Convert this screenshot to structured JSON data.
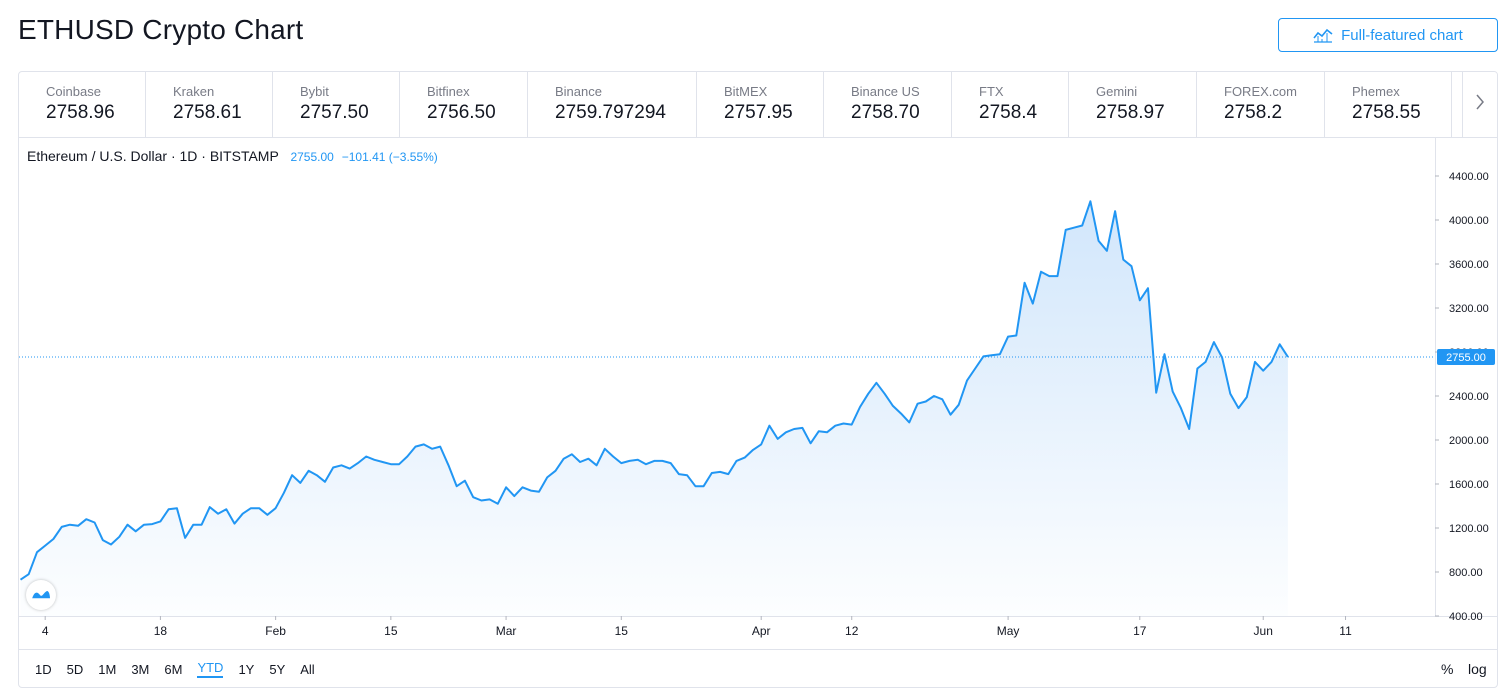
{
  "page": {
    "title": "ETHUSD Crypto Chart",
    "full_featured_label": "Full-featured chart"
  },
  "exchanges": [
    {
      "name": "Coinbase",
      "price": "2758.96"
    },
    {
      "name": "Kraken",
      "price": "2758.61"
    },
    {
      "name": "Bybit",
      "price": "2757.50"
    },
    {
      "name": "Bitfinex",
      "price": "2756.50"
    },
    {
      "name": "Binance",
      "price": "2759.797294"
    },
    {
      "name": "BitMEX",
      "price": "2757.95"
    },
    {
      "name": "Binance US",
      "price": "2758.70"
    },
    {
      "name": "FTX",
      "price": "2758.4"
    },
    {
      "name": "Gemini",
      "price": "2758.97"
    },
    {
      "name": "FOREX.com",
      "price": "2758.2"
    },
    {
      "name": "Phemex",
      "price": "2758.55"
    }
  ],
  "legend": {
    "symbol": "Ethereum / U.S. Dollar · 1D · BITSTAMP",
    "last": "2755.00",
    "change": "−101.41 (−3.55%)"
  },
  "ranges": [
    "1D",
    "5D",
    "1M",
    "3M",
    "6M",
    "YTD",
    "1Y",
    "5Y",
    "All"
  ],
  "selected_range": "YTD",
  "options": {
    "percent": "%",
    "log": "log"
  },
  "icons": {
    "chart": "chart-line-icon",
    "next": "chevron-right-icon",
    "logo": "tradingview-logo-icon"
  },
  "colors": {
    "accent": "#2196f3",
    "line": "#2196f3",
    "area_top": "#cfe5fb",
    "text": "#131722",
    "muted": "#787b86",
    "grid_border": "#e0e3eb"
  },
  "chart_data": {
    "type": "area",
    "title": "Ethereum / U.S. Dollar · 1D · BITSTAMP",
    "x_start": "2021-01-01",
    "y": [
      730,
      780,
      980,
      1040,
      1100,
      1210,
      1230,
      1220,
      1280,
      1250,
      1090,
      1050,
      1120,
      1230,
      1170,
      1230,
      1235,
      1260,
      1370,
      1380,
      1110,
      1230,
      1230,
      1390,
      1330,
      1370,
      1240,
      1330,
      1380,
      1380,
      1320,
      1380,
      1520,
      1680,
      1610,
      1720,
      1680,
      1620,
      1750,
      1770,
      1740,
      1790,
      1850,
      1820,
      1800,
      1780,
      1780,
      1850,
      1940,
      1960,
      1920,
      1940,
      1770,
      1580,
      1630,
      1480,
      1450,
      1460,
      1420,
      1570,
      1490,
      1570,
      1540,
      1530,
      1660,
      1720,
      1830,
      1870,
      1800,
      1830,
      1770,
      1920,
      1850,
      1790,
      1810,
      1820,
      1780,
      1810,
      1810,
      1790,
      1690,
      1680,
      1580,
      1580,
      1700,
      1710,
      1690,
      1810,
      1840,
      1910,
      1960,
      2130,
      2010,
      2070,
      2100,
      2110,
      1970,
      2080,
      2070,
      2130,
      2150,
      2140,
      2300,
      2420,
      2520,
      2420,
      2310,
      2240,
      2160,
      2330,
      2350,
      2400,
      2370,
      2230,
      2320,
      2540,
      2650,
      2760,
      2770,
      2780,
      2940,
      2950,
      3430,
      3240,
      3530,
      3490,
      3490,
      3910,
      3930,
      3950,
      4170,
      3810,
      3720,
      4080,
      3640,
      3580,
      3270,
      3380,
      2430,
      2780,
      2440,
      2290,
      2100,
      2650,
      2710,
      2890,
      2750,
      2420,
      2290,
      2390,
      2710,
      2630,
      2710,
      2870,
      2755
    ],
    "x_ticks": [
      {
        "label": "4",
        "date": "2021-01-04"
      },
      {
        "label": "18",
        "date": "2021-01-18"
      },
      {
        "label": "Feb",
        "date": "2021-02-01"
      },
      {
        "label": "15",
        "date": "2021-02-15"
      },
      {
        "label": "Mar",
        "date": "2021-03-01"
      },
      {
        "label": "15",
        "date": "2021-03-15"
      },
      {
        "label": "Apr",
        "date": "2021-04-01"
      },
      {
        "label": "12",
        "date": "2021-04-12"
      },
      {
        "label": "May",
        "date": "2021-05-01"
      },
      {
        "label": "17",
        "date": "2021-05-17"
      },
      {
        "label": "Jun",
        "date": "2021-06-01"
      },
      {
        "label": "11",
        "date": "2021-06-11"
      }
    ],
    "y_ticks": [
      400,
      800,
      1200,
      1600,
      2000,
      2400,
      2800,
      3200,
      3600,
      4000,
      4400
    ],
    "ylim": [
      400,
      4400
    ],
    "last_value_label": "2755.00",
    "grid": false
  }
}
